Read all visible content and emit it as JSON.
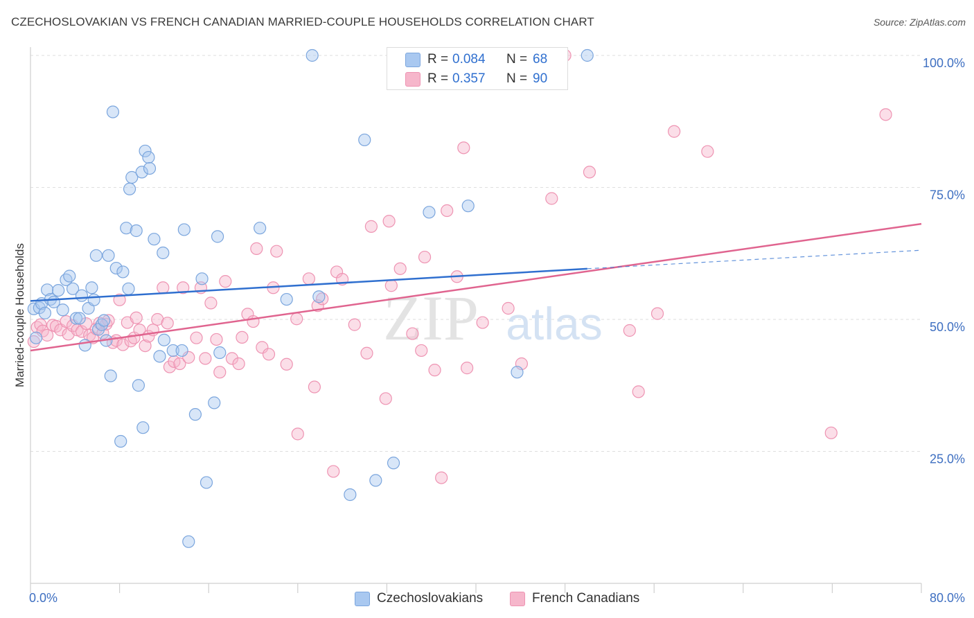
{
  "title": "CZECHOSLOVAKIAN VS FRENCH CANADIAN MARRIED-COUPLE HOUSEHOLDS CORRELATION CHART",
  "source": "Source: ZipAtlas.com",
  "watermark": {
    "zip": "ZIP",
    "atlas": "atlas"
  },
  "colors": {
    "blue_fill": "#a9c8f0",
    "blue_stroke": "#7aa5dd",
    "blue_line": "#2f6fcf",
    "pink_fill": "#f6b6cb",
    "pink_stroke": "#ee93b2",
    "pink_line": "#e0648f",
    "axis_label": "#3e6fc1",
    "grid": "#dedede"
  },
  "legend": {
    "rows": [
      {
        "r_label": "R =",
        "r_value": "0.084",
        "n_label": "N =",
        "n_value": "68",
        "color": "#a9c8f0"
      },
      {
        "r_label": "R =",
        "r_value": "0.357",
        "n_label": "N =",
        "n_value": "90",
        "color": "#f6b6cb"
      }
    ]
  },
  "bottom_legend": [
    {
      "label": "Czechoslovakians",
      "color": "#a9c8f0"
    },
    {
      "label": "French Canadians",
      "color": "#f6b6cb"
    }
  ],
  "chart_data": {
    "type": "scatter",
    "xlabel": "",
    "ylabel": "Married-couple Households",
    "xlim": [
      0,
      80
    ],
    "ylim": [
      0,
      100
    ],
    "x_ticks_labeled": [
      "0.0%",
      "80.0%"
    ],
    "y_ticks": [
      25,
      50,
      75,
      100
    ],
    "y_tick_labels": [
      "25.0%",
      "50.0%",
      "75.0%",
      "100.0%"
    ],
    "grid": true,
    "series": [
      {
        "name": "Czechoslovakians",
        "r": 0.084,
        "n": 68,
        "trend": {
          "x0": 0,
          "y0": 53.5,
          "x1": 50,
          "y1": 59.6,
          "dash_x1": 80,
          "dash_y1": 63.1
        },
        "points": [
          [
            0.3,
            52.0
          ],
          [
            0.5,
            46.5
          ],
          [
            0.8,
            52.2
          ],
          [
            1.0,
            53.0
          ],
          [
            1.3,
            51.2
          ],
          [
            1.5,
            55.6
          ],
          [
            1.8,
            53.8
          ],
          [
            2.1,
            53.3
          ],
          [
            2.5,
            55.5
          ],
          [
            2.9,
            51.8
          ],
          [
            3.2,
            57.5
          ],
          [
            3.5,
            58.2
          ],
          [
            3.8,
            55.8
          ],
          [
            4.1,
            50.2
          ],
          [
            4.4,
            50.2
          ],
          [
            4.6,
            54.5
          ],
          [
            4.9,
            45.1
          ],
          [
            5.2,
            52.1
          ],
          [
            5.5,
            56.0
          ],
          [
            5.7,
            53.7
          ],
          [
            5.9,
            62.1
          ],
          [
            6.1,
            48.1
          ],
          [
            6.4,
            49.0
          ],
          [
            6.6,
            49.8
          ],
          [
            6.8,
            46.0
          ],
          [
            7.0,
            62.1
          ],
          [
            7.2,
            39.3
          ],
          [
            7.4,
            89.3
          ],
          [
            7.7,
            59.7
          ],
          [
            8.1,
            26.9
          ],
          [
            8.3,
            59.0
          ],
          [
            8.6,
            67.3
          ],
          [
            8.8,
            55.8
          ],
          [
            8.9,
            74.7
          ],
          [
            9.1,
            76.9
          ],
          [
            9.5,
            66.8
          ],
          [
            9.7,
            37.5
          ],
          [
            10.0,
            77.9
          ],
          [
            10.1,
            29.5
          ],
          [
            10.3,
            81.9
          ],
          [
            10.6,
            80.7
          ],
          [
            10.7,
            78.6
          ],
          [
            11.1,
            65.2
          ],
          [
            11.6,
            43.0
          ],
          [
            11.9,
            62.6
          ],
          [
            12.0,
            46.1
          ],
          [
            12.8,
            44.1
          ],
          [
            13.6,
            44.1
          ],
          [
            13.8,
            67.0
          ],
          [
            14.2,
            7.9
          ],
          [
            14.8,
            32.0
          ],
          [
            15.4,
            57.7
          ],
          [
            15.8,
            19.1
          ],
          [
            16.5,
            34.2
          ],
          [
            16.8,
            65.7
          ],
          [
            17.0,
            43.7
          ],
          [
            20.6,
            67.3
          ],
          [
            23.0,
            53.8
          ],
          [
            25.3,
            100.0
          ],
          [
            25.9,
            54.3
          ],
          [
            28.7,
            16.8
          ],
          [
            30.0,
            84.0
          ],
          [
            31.0,
            19.5
          ],
          [
            32.6,
            22.8
          ],
          [
            35.8,
            70.3
          ],
          [
            39.3,
            71.5
          ],
          [
            43.7,
            40.0
          ],
          [
            50.0,
            100.0
          ]
        ]
      },
      {
        "name": "French Canadians",
        "r": 0.357,
        "n": 90,
        "trend": {
          "x0": 0,
          "y0": 44.1,
          "x1": 80,
          "y1": 68.1
        },
        "points": [
          [
            0.3,
            45.8
          ],
          [
            0.6,
            48.5
          ],
          [
            0.9,
            49.0
          ],
          [
            1.1,
            47.8
          ],
          [
            1.5,
            47.0
          ],
          [
            2.0,
            48.9
          ],
          [
            2.3,
            48.7
          ],
          [
            2.7,
            48.0
          ],
          [
            3.2,
            49.6
          ],
          [
            3.4,
            47.2
          ],
          [
            3.8,
            48.8
          ],
          [
            4.2,
            48.0
          ],
          [
            4.6,
            47.7
          ],
          [
            5.0,
            49.2
          ],
          [
            5.3,
            47.0
          ],
          [
            5.6,
            46.5
          ],
          [
            5.9,
            48.2
          ],
          [
            6.2,
            49.3
          ],
          [
            6.5,
            47.4
          ],
          [
            6.8,
            49.1
          ],
          [
            7.0,
            49.8
          ],
          [
            7.4,
            45.6
          ],
          [
            7.7,
            46.0
          ],
          [
            8.0,
            53.7
          ],
          [
            8.3,
            45.2
          ],
          [
            8.7,
            49.4
          ],
          [
            9.0,
            45.9
          ],
          [
            9.3,
            46.5
          ],
          [
            9.5,
            50.3
          ],
          [
            9.8,
            48.0
          ],
          [
            10.3,
            45.0
          ],
          [
            10.6,
            46.8
          ],
          [
            11.0,
            48.0
          ],
          [
            11.4,
            50.0
          ],
          [
            11.9,
            56.0
          ],
          [
            12.3,
            49.3
          ],
          [
            12.5,
            41.0
          ],
          [
            12.9,
            42.0
          ],
          [
            13.4,
            41.6
          ],
          [
            13.7,
            56.0
          ],
          [
            14.2,
            42.8
          ],
          [
            14.9,
            46.5
          ],
          [
            15.3,
            56.0
          ],
          [
            15.7,
            42.6
          ],
          [
            16.2,
            53.1
          ],
          [
            16.7,
            46.2
          ],
          [
            17.0,
            40.0
          ],
          [
            17.5,
            57.2
          ],
          [
            18.1,
            42.6
          ],
          [
            18.7,
            41.6
          ],
          [
            19.0,
            46.6
          ],
          [
            19.5,
            51.0
          ],
          [
            20.0,
            49.6
          ],
          [
            20.3,
            63.4
          ],
          [
            20.8,
            44.7
          ],
          [
            21.4,
            43.4
          ],
          [
            21.8,
            56.0
          ],
          [
            22.1,
            62.9
          ],
          [
            23.0,
            41.5
          ],
          [
            23.9,
            50.1
          ],
          [
            24.0,
            28.3
          ],
          [
            25.0,
            57.7
          ],
          [
            25.5,
            37.2
          ],
          [
            25.8,
            52.6
          ],
          [
            26.2,
            53.9
          ],
          [
            27.2,
            21.2
          ],
          [
            27.5,
            59.0
          ],
          [
            28.0,
            57.6
          ],
          [
            29.1,
            49.0
          ],
          [
            30.2,
            43.6
          ],
          [
            30.6,
            67.6
          ],
          [
            31.9,
            35.0
          ],
          [
            32.2,
            68.6
          ],
          [
            32.4,
            56.4
          ],
          [
            33.2,
            59.6
          ],
          [
            34.3,
            47.3
          ],
          [
            35.1,
            44.1
          ],
          [
            35.4,
            61.8
          ],
          [
            36.3,
            40.4
          ],
          [
            36.9,
            20.0
          ],
          [
            37.4,
            70.6
          ],
          [
            38.3,
            58.1
          ],
          [
            38.9,
            82.5
          ],
          [
            39.2,
            40.8
          ],
          [
            40.6,
            49.4
          ],
          [
            42.9,
            52.1
          ],
          [
            44.1,
            41.6
          ],
          [
            46.8,
            72.9
          ],
          [
            50.2,
            77.9
          ],
          [
            53.8,
            47.9
          ]
        ]
      }
    ],
    "extra_points_pink": [
      [
        54.6,
        36.3
      ],
      [
        56.3,
        51.1
      ],
      [
        57.8,
        85.6
      ],
      [
        60.8,
        81.8
      ],
      [
        48.0,
        100.0
      ],
      [
        71.9,
        28.5
      ],
      [
        76.8,
        88.8
      ]
    ]
  }
}
